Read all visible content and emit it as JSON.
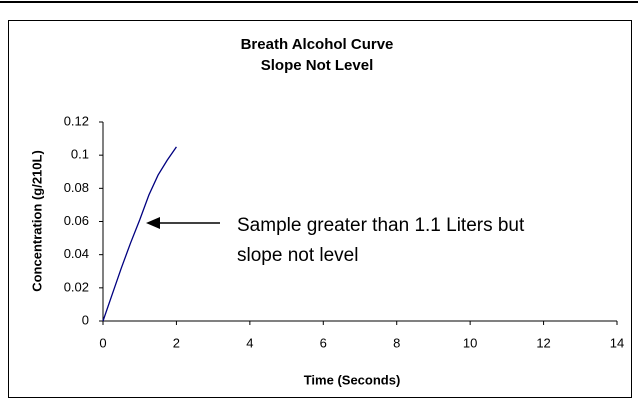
{
  "chart_data": {
    "type": "line",
    "title": [
      "Breath Alcohol Curve",
      "Slope Not Level"
    ],
    "xlabel": "Time (Seconds)",
    "ylabel": "Concentration (g/210L)",
    "annotation": [
      "Sample greater than 1.1 Liters but",
      "slope not level"
    ],
    "x": [
      0,
      0.25,
      0.5,
      0.75,
      1,
      1.25,
      1.5,
      1.75,
      2
    ],
    "series": [
      {
        "color": "#000080",
        "values": [
          0,
          0.016,
          0.032,
          0.047,
          0.061,
          0.076,
          0.088,
          0.097,
          0.105
        ]
      }
    ],
    "xlim": [
      0,
      14
    ],
    "xticks": [
      0,
      2,
      4,
      6,
      8,
      10,
      12,
      14
    ],
    "ylim": [
      0,
      0.12
    ],
    "yticks": [
      0,
      0.02,
      0.04,
      0.06,
      0.08,
      0.1,
      0.12
    ],
    "grid": false
  }
}
